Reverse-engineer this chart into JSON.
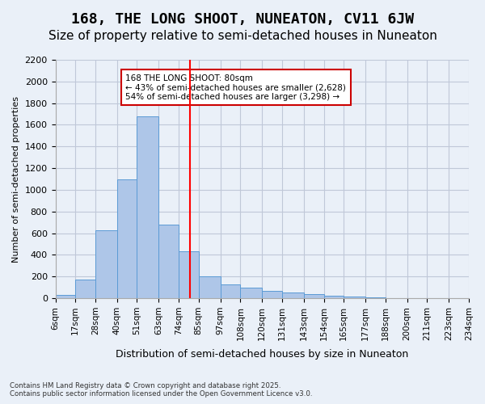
{
  "title": "168, THE LONG SHOOT, NUNEATON, CV11 6JW",
  "subtitle": "Size of property relative to semi-detached houses in Nuneaton",
  "xlabel": "Distribution of semi-detached houses by size in Nuneaton",
  "ylabel": "Number of semi-detached properties",
  "footer_line1": "Contains HM Land Registry data © Crown copyright and database right 2025.",
  "footer_line2": "Contains public sector information licensed under the Open Government Licence v3.0.",
  "annotation_title": "168 THE LONG SHOOT: 80sqm",
  "annotation_line1": "← 43% of semi-detached houses are smaller (2,628)",
  "annotation_line2": "54% of semi-detached houses are larger (3,298) →",
  "property_size": 80,
  "bar_labels": [
    "6sqm",
    "17sqm",
    "28sqm",
    "40sqm",
    "51sqm",
    "63sqm",
    "74sqm",
    "85sqm",
    "97sqm",
    "108sqm",
    "120sqm",
    "131sqm",
    "143sqm",
    "154sqm",
    "165sqm",
    "177sqm",
    "188sqm",
    "200sqm",
    "211sqm",
    "223sqm",
    "234sqm"
  ],
  "bar_values": [
    30,
    170,
    630,
    1100,
    1680,
    680,
    430,
    200,
    130,
    100,
    70,
    55,
    40,
    20,
    15,
    5,
    3,
    1,
    0,
    0
  ],
  "bin_edges": [
    6,
    17,
    28,
    40,
    51,
    63,
    74,
    85,
    97,
    108,
    120,
    131,
    143,
    154,
    165,
    177,
    188,
    200,
    211,
    223,
    234
  ],
  "bar_color": "#aec6e8",
  "bar_edge_color": "#5b9bd5",
  "red_line_x": 80,
  "ylim": [
    0,
    2200
  ],
  "yticks": [
    0,
    200,
    400,
    600,
    800,
    1000,
    1200,
    1400,
    1600,
    1800,
    2000,
    2200
  ],
  "grid_color": "#c0c8d8",
  "bg_color": "#eaf0f8",
  "annotation_box_color": "#ffffff",
  "annotation_border_color": "#cc0000",
  "title_fontsize": 13,
  "subtitle_fontsize": 11
}
